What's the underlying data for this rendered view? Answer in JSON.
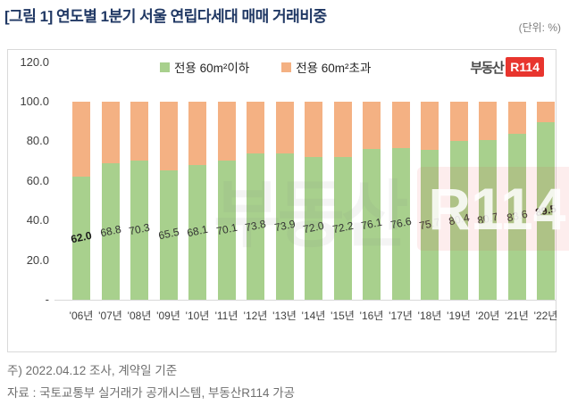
{
  "page": {
    "title": "[그림 1] 연도별 1분기 서울 연립다세대 매매 거래비중",
    "unit_label": "(단위: %)"
  },
  "chart_data": {
    "type": "bar",
    "stacked": true,
    "title": "연도별 1분기 서울 연립다세대 매매 거래비중",
    "unit": "%",
    "categories": [
      "'06년",
      "'07년",
      "'08년",
      "'09년",
      "'10년",
      "'11년",
      "'12년",
      "'13년",
      "'14년",
      "'15년",
      "'16년",
      "'17년",
      "'18년",
      "'19년",
      "'20년",
      "'21년",
      "'22년"
    ],
    "series": [
      {
        "name": "전용 60m²이하",
        "color": "#A8D08D",
        "values": [
          62.0,
          68.8,
          70.3,
          65.5,
          68.1,
          70.1,
          73.8,
          73.9,
          72.0,
          72.2,
          76.1,
          76.6,
          75.7,
          80.4,
          80.7,
          83.6,
          89.5
        ]
      },
      {
        "name": "전용 60m²초과",
        "color": "#F4B183",
        "values": [
          38.0,
          31.2,
          29.7,
          34.5,
          31.9,
          29.9,
          26.2,
          26.1,
          28.0,
          27.8,
          23.9,
          23.4,
          24.3,
          19.6,
          19.3,
          16.4,
          10.5
        ]
      }
    ],
    "data_labels_series": 0,
    "emphasized_label_indices": [
      0,
      16
    ],
    "y_axis": {
      "ticks": [
        "120.0",
        "100.0",
        "80.0",
        "60.0",
        "40.0",
        "20.0",
        "-"
      ],
      "tick_values": [
        120,
        100,
        80,
        60,
        40,
        20,
        0
      ],
      "min": 0,
      "max": 120
    },
    "legend_position": "top",
    "grid": false
  },
  "logo": {
    "text": "부동산",
    "badge": "R114"
  },
  "watermark": {
    "text": "부동산",
    "badge": "R114"
  },
  "footer": {
    "note": "주) 2022.04.12 조사, 계약일 기준",
    "source": "자료 : 국토교통부 실거래가 공개시스템, 부동산R114 가공"
  },
  "colors": {
    "title": "#203864",
    "bar_under60": "#A8D08D",
    "bar_over60": "#F4B183",
    "logo_red": "#E8352E",
    "axis_text": "#404040",
    "footer_text": "#6F6F6F",
    "border": "#D9D9D9"
  }
}
